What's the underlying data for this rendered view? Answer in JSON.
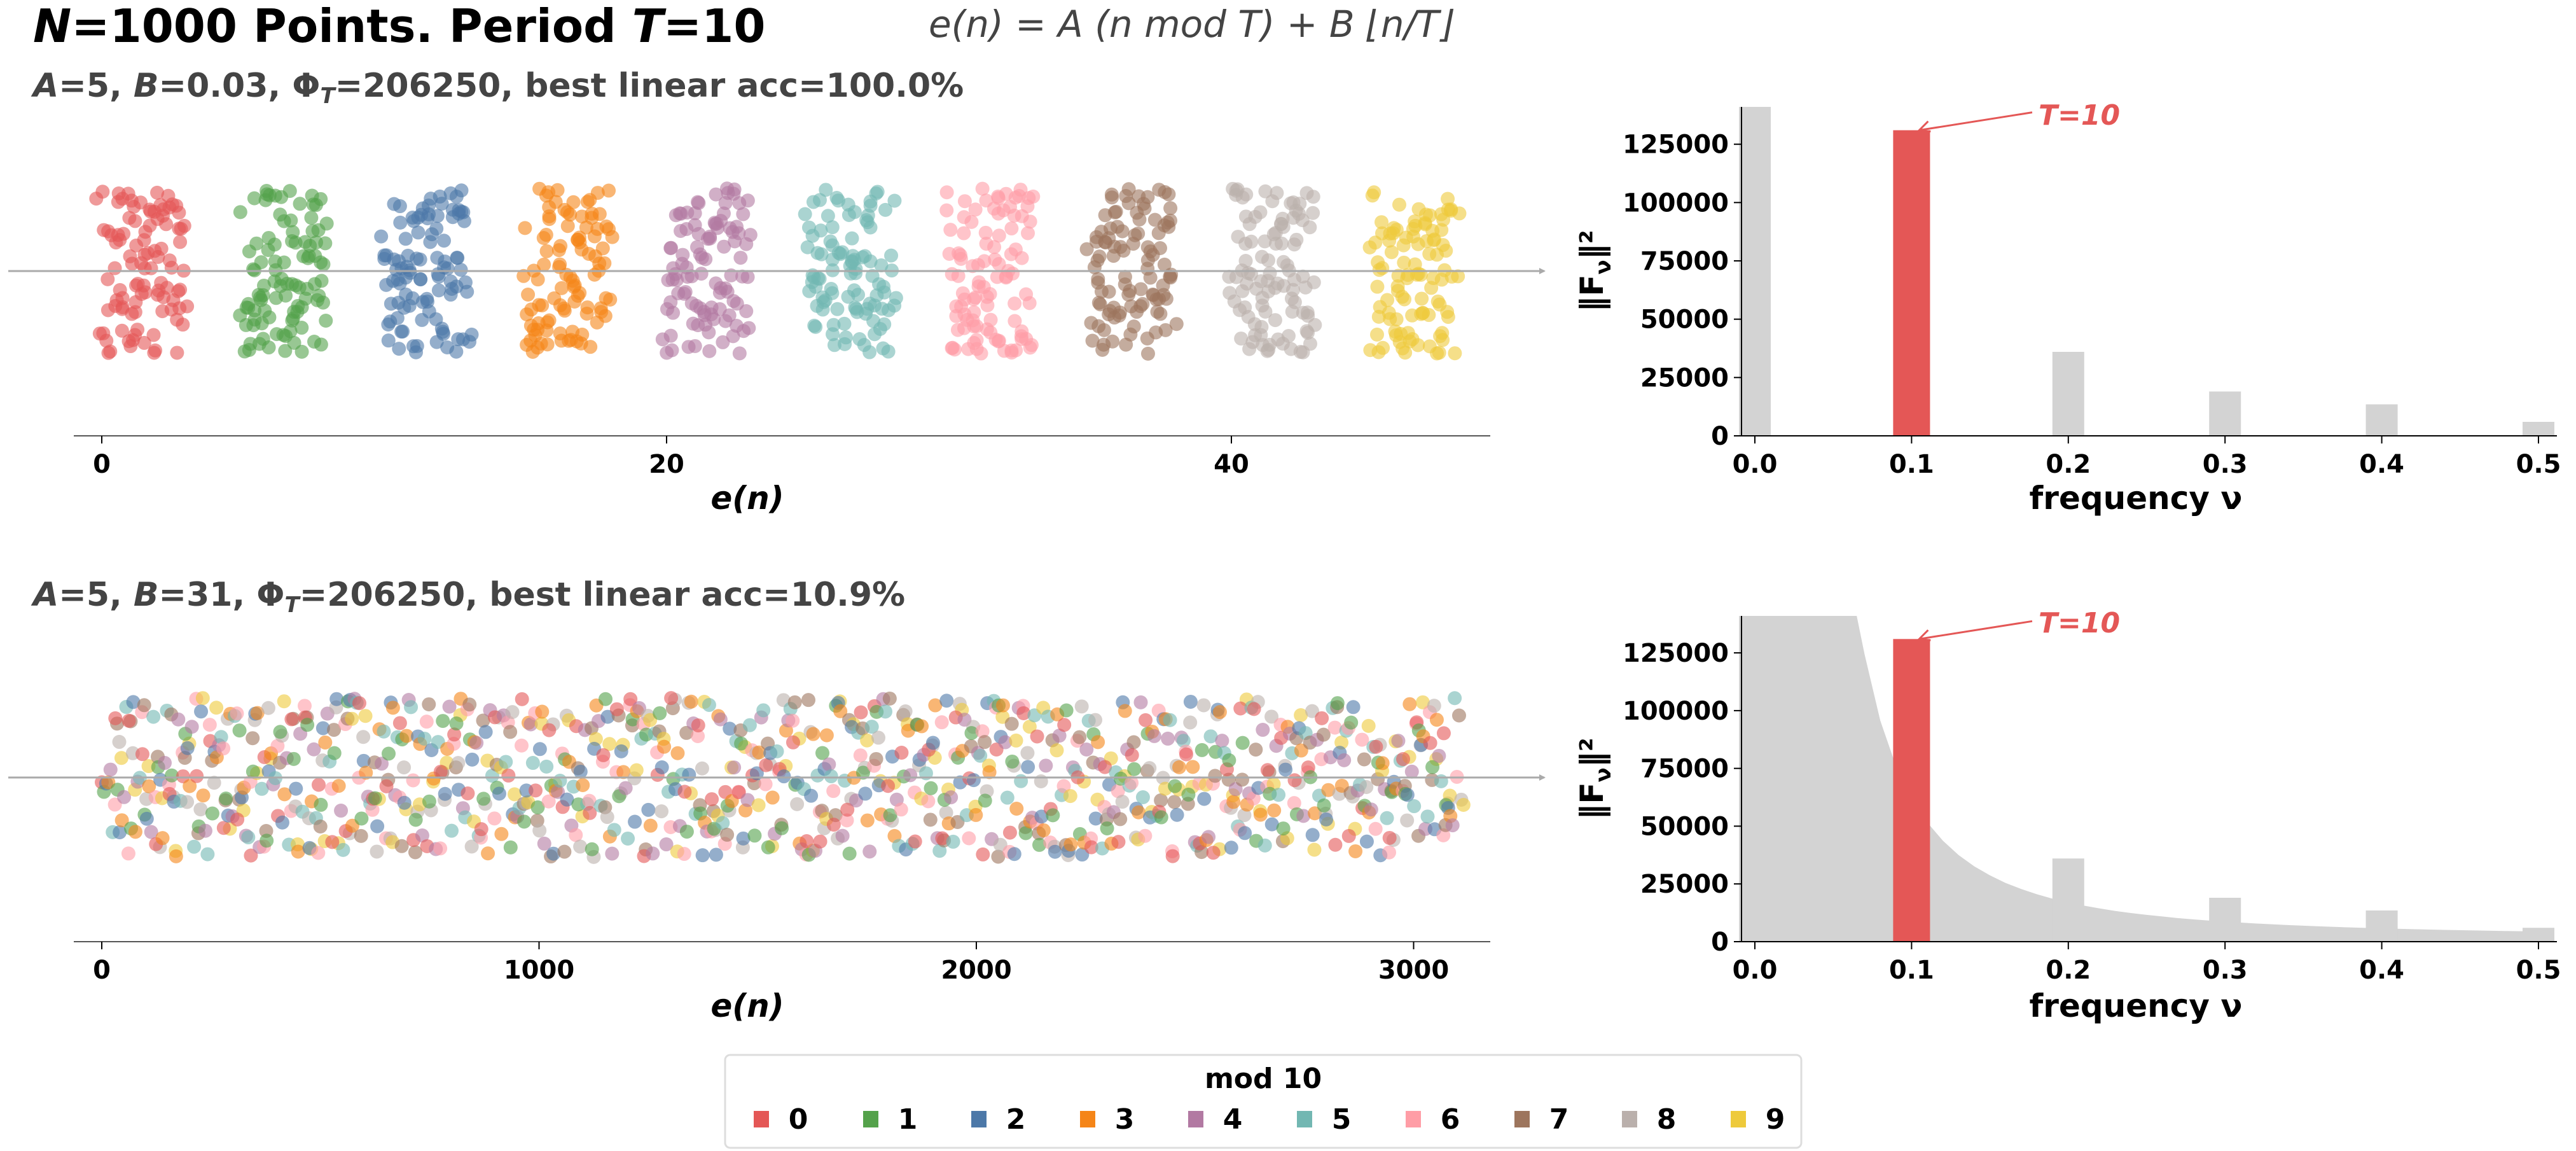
{
  "header": {
    "title_parts": [
      "N",
      "=1000 Points.  Period ",
      "T",
      "=10"
    ],
    "formula": "e(n) = A (n mod T) + B ⌊n/T⌋"
  },
  "rows": [
    {
      "subtitle_parts": [
        "A",
        "=5,  ",
        "B",
        "=0.03,  Φ",
        "T",
        "=206250,  best linear acc=100.0%"
      ],
      "scatter_xlabel": "e(n)",
      "scatter_ticks": [
        "0",
        "20",
        "40"
      ],
      "spectrum_ylabel_main": "‖F",
      "spectrum_ylabel_sub": "ν",
      "spectrum_ylabel_end": "‖²",
      "spectrum_xlabel": "frequency ν",
      "annotation": "T=10"
    },
    {
      "subtitle_parts": [
        "A",
        "=5,  ",
        "B",
        "=31,  Φ",
        "T",
        "=206250,  best linear acc=10.9%"
      ],
      "scatter_xlabel": "e(n)",
      "scatter_ticks": [
        "0",
        "1000",
        "2000",
        "3000"
      ],
      "spectrum_ylabel_main": "‖F",
      "spectrum_ylabel_sub": "ν",
      "spectrum_ylabel_end": "‖²",
      "spectrum_xlabel": "frequency ν",
      "annotation": "T=10"
    }
  ],
  "legend": {
    "title": "mod 10",
    "items": [
      {
        "label": "0",
        "color": "#e45756"
      },
      {
        "label": "1",
        "color": "#54a24b"
      },
      {
        "label": "2",
        "color": "#4c78a8"
      },
      {
        "label": "3",
        "color": "#f58518"
      },
      {
        "label": "4",
        "color": "#b279a2"
      },
      {
        "label": "5",
        "color": "#72b7b2"
      },
      {
        "label": "6",
        "color": "#ff9da6"
      },
      {
        "label": "7",
        "color": "#9d755d"
      },
      {
        "label": "8",
        "color": "#bab0ac"
      },
      {
        "label": "9",
        "color": "#eeca3b"
      }
    ]
  },
  "chart_data": [
    {
      "type": "scatter",
      "title": "A=5, B=0.03, Φ_T=206250, best linear acc=100.0%",
      "N": 1000,
      "T": 10,
      "A": 5,
      "B": 0.03,
      "x_formula": "e(n) = A (n mod T) + B floor(n/T)",
      "color_by": "n mod 10",
      "xlabel": "e(n)",
      "xticks": [
        0,
        20,
        40
      ],
      "xlim": [
        -2.5,
        50
      ]
    },
    {
      "type": "bar",
      "xlabel": "frequency ν",
      "ylabel": "‖F_ν‖²",
      "xticks": [
        "0.0",
        "0.1",
        "0.2",
        "0.3",
        "0.4",
        "0.5"
      ],
      "yticks": [
        "0",
        "25000",
        "50000",
        "75000",
        "100000",
        "125000"
      ],
      "ylim": [
        0,
        141000
      ],
      "xlim": [
        -0.01,
        0.51
      ],
      "peaks": [
        {
          "freq": 0.0,
          "value": 141000,
          "highlight": false
        },
        {
          "freq": 0.1,
          "value": 131000,
          "highlight": true
        },
        {
          "freq": 0.2,
          "value": 36000,
          "highlight": false
        },
        {
          "freq": 0.3,
          "value": 19000,
          "highlight": false
        },
        {
          "freq": 0.4,
          "value": 13500,
          "highlight": false
        },
        {
          "freq": 0.5,
          "value": 6000,
          "highlight": false
        }
      ],
      "background": [],
      "annotation": {
        "text": "T=10",
        "freq": 0.1
      },
      "highlight_color": "#e45756",
      "bar_color": "#d3d3d3"
    },
    {
      "type": "scatter",
      "title": "A=5, B=31, Φ_T=206250, best linear acc=10.9%",
      "N": 1000,
      "T": 10,
      "A": 5,
      "B": 31,
      "x_formula": "e(n) = A (n mod T) + B floor(n/T)",
      "color_by": "n mod 10",
      "xlabel": "e(n)",
      "xticks": [
        0,
        1000,
        2000,
        3000
      ],
      "xlim": [
        -150,
        3180
      ]
    },
    {
      "type": "bar",
      "xlabel": "frequency ν",
      "ylabel": "‖F_ν‖²",
      "xticks": [
        "0.0",
        "0.1",
        "0.2",
        "0.3",
        "0.4",
        "0.5"
      ],
      "yticks": [
        "0",
        "25000",
        "50000",
        "75000",
        "100000",
        "125000"
      ],
      "ylim": [
        0,
        141000
      ],
      "xlim": [
        -0.01,
        0.51
      ],
      "peaks": [
        {
          "freq": 0.0,
          "value": 141000,
          "highlight": false
        },
        {
          "freq": 0.1,
          "value": 131000,
          "highlight": true
        },
        {
          "freq": 0.2,
          "value": 36000,
          "highlight": false
        },
        {
          "freq": 0.3,
          "value": 19000,
          "highlight": false
        },
        {
          "freq": 0.4,
          "value": 13500,
          "highlight": false
        },
        {
          "freq": 0.5,
          "value": 6000,
          "highlight": false
        }
      ],
      "background": [
        [
          0.0,
          141000
        ],
        [
          0.06,
          141000
        ],
        [
          0.065,
          141000
        ],
        [
          0.07,
          124400
        ],
        [
          0.08,
          95750
        ],
        [
          0.09,
          76100
        ],
        [
          0.1,
          62000
        ],
        [
          0.11,
          51600
        ],
        [
          0.12,
          43700
        ],
        [
          0.13,
          37500
        ],
        [
          0.14,
          32600
        ],
        [
          0.15,
          28700
        ],
        [
          0.16,
          25400
        ],
        [
          0.17,
          22800
        ],
        [
          0.18,
          20500
        ],
        [
          0.19,
          18600
        ],
        [
          0.2,
          17000
        ],
        [
          0.21,
          15600
        ],
        [
          0.22,
          14400
        ],
        [
          0.23,
          13300
        ],
        [
          0.24,
          12400
        ],
        [
          0.25,
          11600
        ],
        [
          0.26,
          10900
        ],
        [
          0.27,
          10200
        ],
        [
          0.28,
          9650
        ],
        [
          0.29,
          9130
        ],
        [
          0.3,
          8670
        ],
        [
          0.32,
          7860
        ],
        [
          0.34,
          7190
        ],
        [
          0.36,
          6630
        ],
        [
          0.38,
          6160
        ],
        [
          0.4,
          5750
        ],
        [
          0.42,
          5400
        ],
        [
          0.44,
          5100
        ],
        [
          0.46,
          4840
        ],
        [
          0.48,
          4600
        ],
        [
          0.5,
          4400
        ],
        [
          0.51,
          4300
        ]
      ],
      "annotation": {
        "text": "T=10",
        "freq": 0.1
      },
      "highlight_color": "#e45756",
      "bar_color": "#d3d3d3"
    }
  ]
}
